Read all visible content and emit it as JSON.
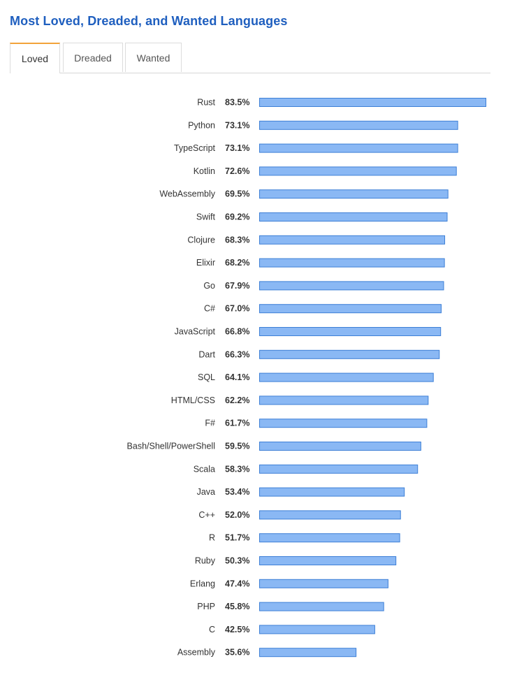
{
  "title": "Most Loved, Dreaded, and Wanted Languages",
  "tabs": [
    {
      "label": "Loved",
      "active": true
    },
    {
      "label": "Dreaded",
      "active": false
    },
    {
      "label": "Wanted",
      "active": false
    }
  ],
  "colors": {
    "bar_fill": "#8ab8f4",
    "bar_stroke": "#3d7fd6",
    "title": "#1f5fbf",
    "tab_accent": "#f2a33a"
  },
  "chart_data": {
    "type": "bar",
    "orientation": "horizontal",
    "value_suffix": "%",
    "xlim": [
      0,
      83.5
    ],
    "categories": [
      "Rust",
      "Python",
      "TypeScript",
      "Kotlin",
      "WebAssembly",
      "Swift",
      "Clojure",
      "Elixir",
      "Go",
      "C#",
      "JavaScript",
      "Dart",
      "SQL",
      "HTML/CSS",
      "F#",
      "Bash/Shell/PowerShell",
      "Scala",
      "Java",
      "C++",
      "R",
      "Ruby",
      "Erlang",
      "PHP",
      "C",
      "Assembly"
    ],
    "values": [
      83.5,
      73.1,
      73.1,
      72.6,
      69.5,
      69.2,
      68.3,
      68.2,
      67.9,
      67.0,
      66.8,
      66.3,
      64.1,
      62.2,
      61.7,
      59.5,
      58.3,
      53.4,
      52.0,
      51.7,
      50.3,
      47.4,
      45.8,
      42.5,
      35.6
    ],
    "value_labels": [
      "83.5%",
      "73.1%",
      "73.1%",
      "72.6%",
      "69.5%",
      "69.2%",
      "68.3%",
      "68.2%",
      "67.9%",
      "67.0%",
      "66.8%",
      "66.3%",
      "64.1%",
      "62.2%",
      "61.7%",
      "59.5%",
      "58.3%",
      "53.4%",
      "52.0%",
      "51.7%",
      "50.3%",
      "47.4%",
      "45.8%",
      "42.5%",
      "35.6%"
    ]
  }
}
